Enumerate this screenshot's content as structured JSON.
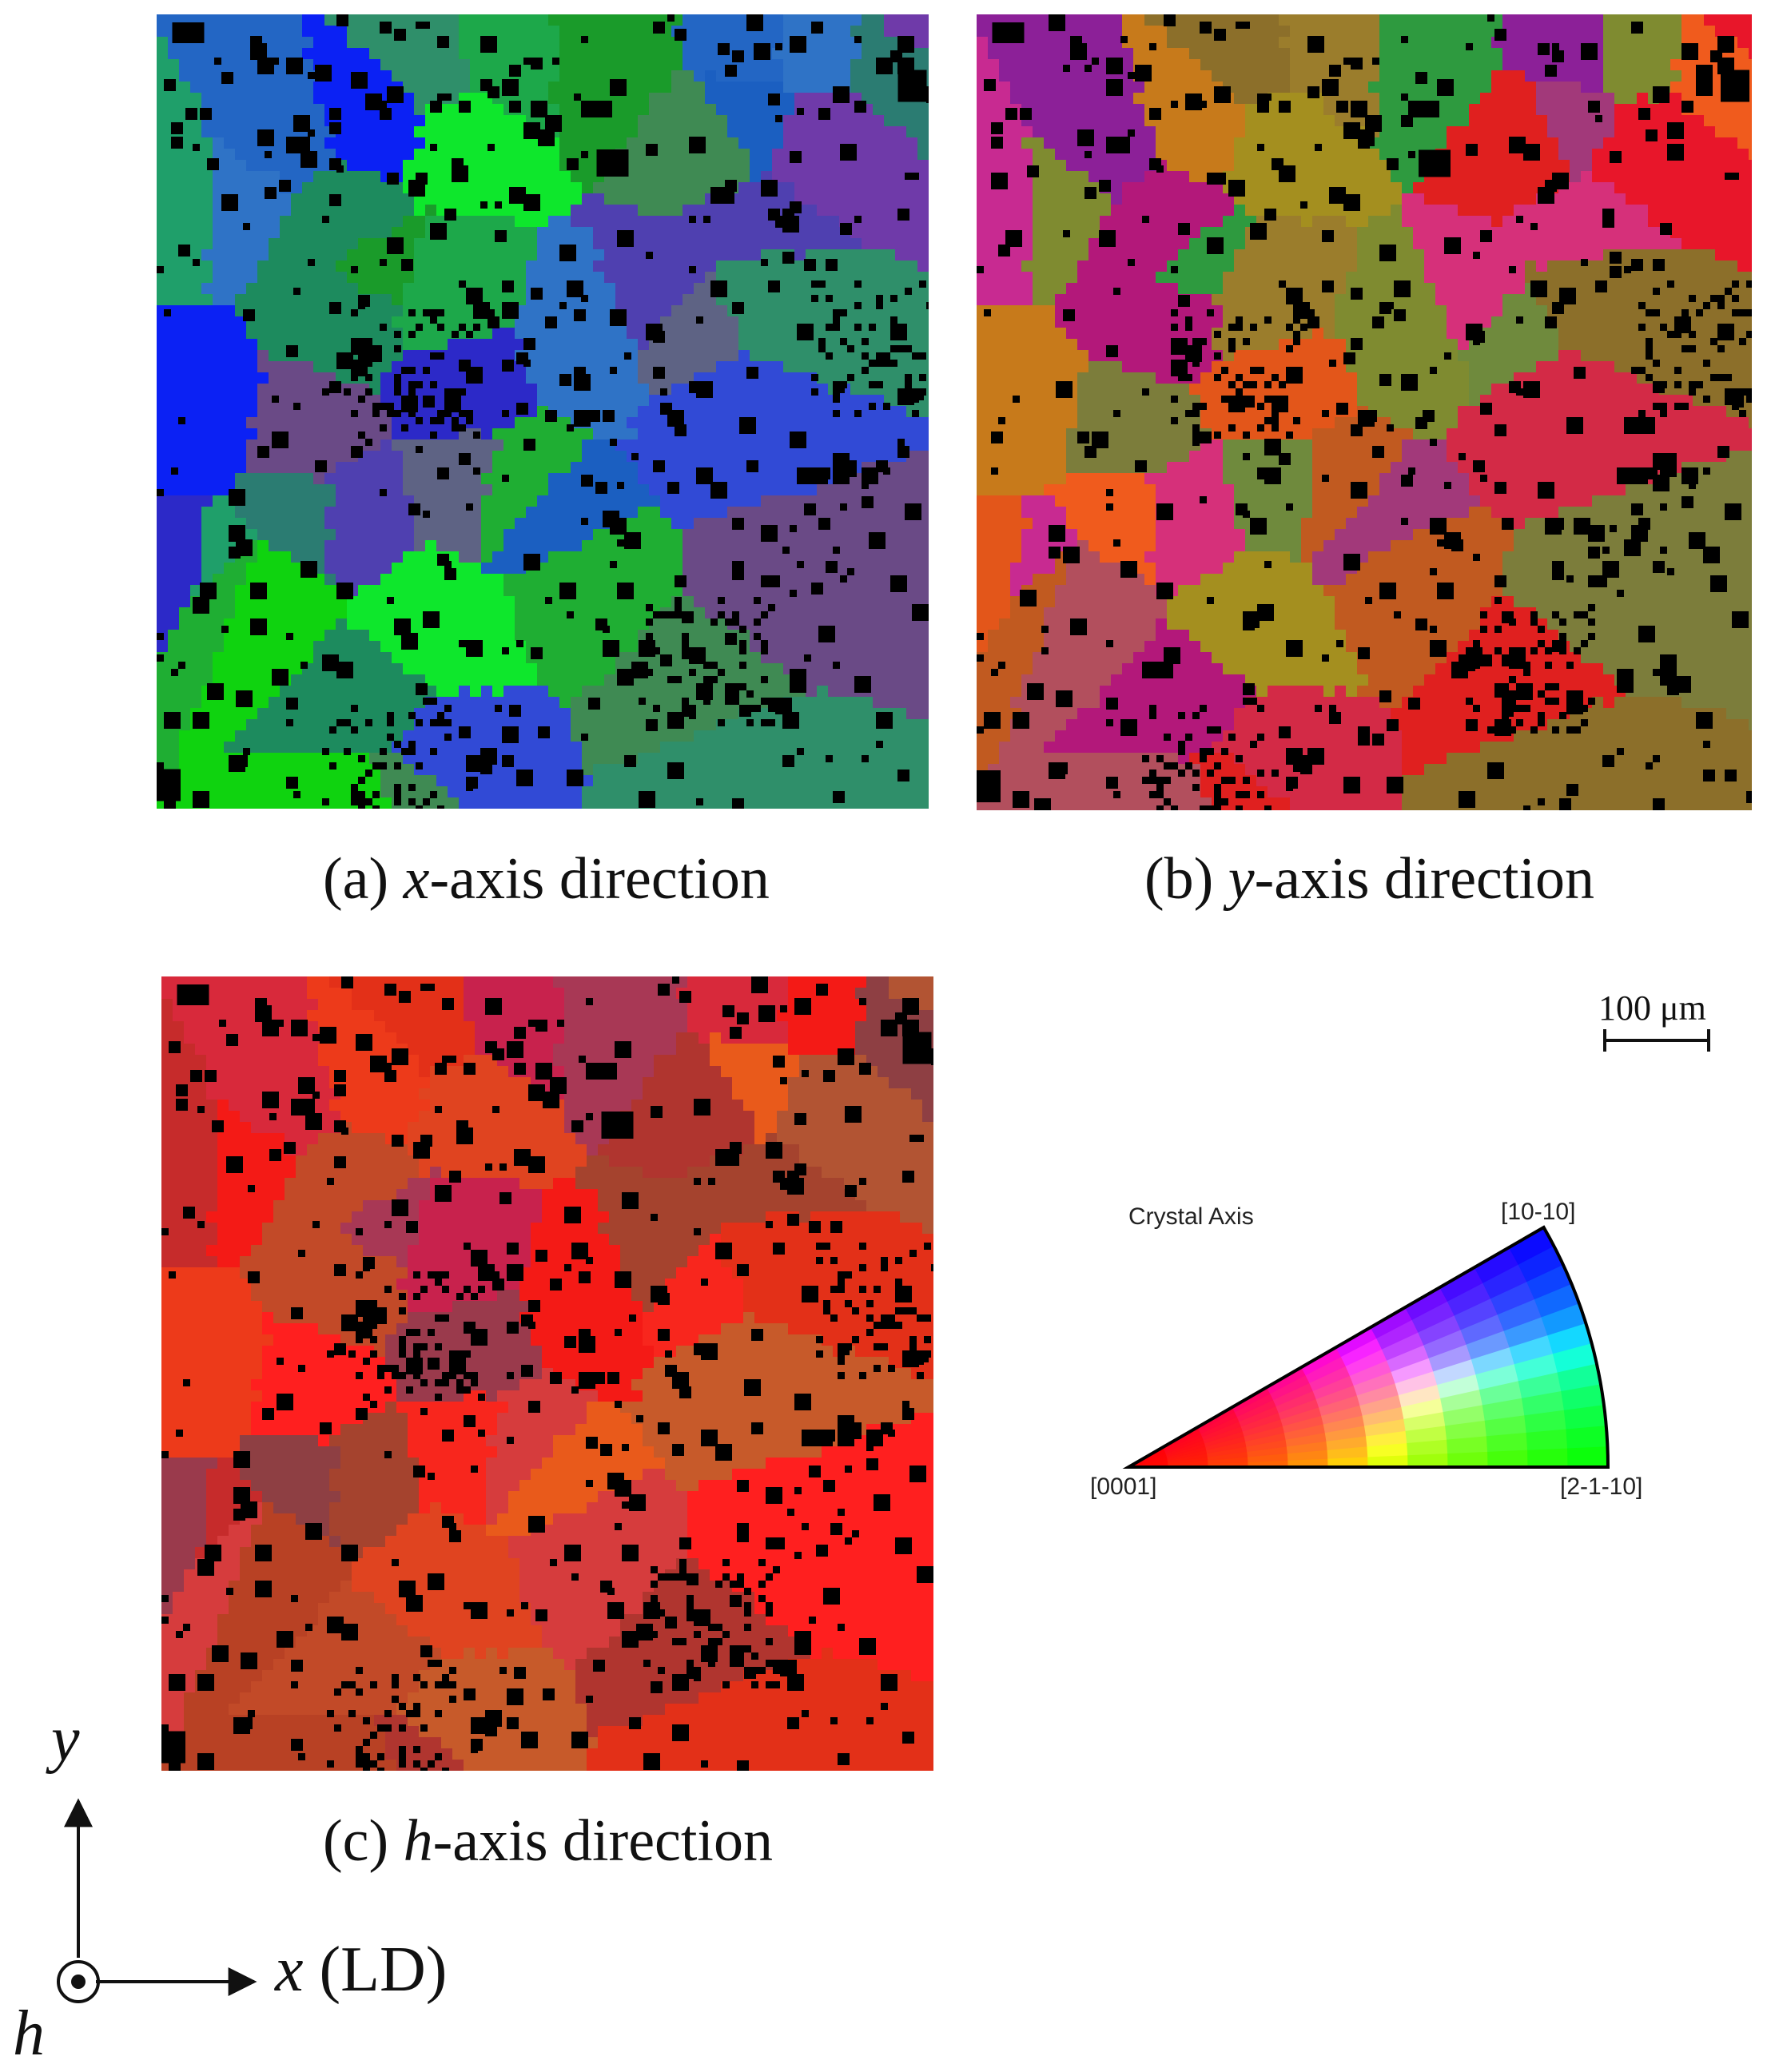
{
  "panels": [
    {
      "id": "a",
      "caption_prefix": "(a) ",
      "caption_axis": "x",
      "caption_suffix": "-axis direction",
      "base_color": "#1f5fa8",
      "grains": [
        {
          "c": "#1d8b5e"
        },
        {
          "c": "#2f8f6a"
        },
        {
          "c": "#3f8a53"
        },
        {
          "c": "#1fae33"
        },
        {
          "c": "#2f73c6"
        },
        {
          "c": "#4f40b0"
        },
        {
          "c": "#1da84a"
        },
        {
          "c": "#1b5fc1"
        },
        {
          "c": "#2c29c8"
        },
        {
          "c": "#5e6384"
        },
        {
          "c": "#0fd30f"
        },
        {
          "c": "#2366c4"
        },
        {
          "c": "#0b21f4"
        },
        {
          "c": "#1a9b2a"
        },
        {
          "c": "#314ad6"
        },
        {
          "c": "#6a4a86"
        },
        {
          "c": "#2b7c72"
        },
        {
          "c": "#0ee72c"
        },
        {
          "c": "#1f9f6a"
        },
        {
          "c": "#6f3aa9"
        }
      ]
    },
    {
      "id": "b",
      "caption_prefix": "(b) ",
      "caption_axis": "y",
      "caption_suffix": "-axis direction",
      "base_color": "#c2365f",
      "grains": [
        {
          "c": "#b3187a"
        },
        {
          "c": "#8c6f2a"
        },
        {
          "c": "#e0201f"
        },
        {
          "c": "#c15a20"
        },
        {
          "c": "#7f8b30"
        },
        {
          "c": "#d6307a"
        },
        {
          "c": "#9b7d2c"
        },
        {
          "c": "#a2397a"
        },
        {
          "c": "#e3561a"
        },
        {
          "c": "#6f8a3d"
        },
        {
          "c": "#b24f5d"
        },
        {
          "c": "#8c2098"
        },
        {
          "c": "#c77a1b"
        },
        {
          "c": "#2e9a3f"
        },
        {
          "c": "#d32a46"
        },
        {
          "c": "#7c7d3b"
        },
        {
          "c": "#f05b1d"
        },
        {
          "c": "#a48f1f"
        },
        {
          "c": "#c82a91"
        },
        {
          "c": "#e8162a"
        }
      ]
    },
    {
      "id": "c",
      "caption_prefix": "(c) ",
      "caption_axis": "h",
      "caption_suffix": "-axis direction",
      "base_color": "#e8261f",
      "grains": [
        {
          "c": "#c24a28"
        },
        {
          "c": "#e33018"
        },
        {
          "c": "#b0352f"
        },
        {
          "c": "#d63c3d"
        },
        {
          "c": "#f41a16"
        },
        {
          "c": "#a5432e"
        },
        {
          "c": "#c8224d"
        },
        {
          "c": "#e95a1b"
        },
        {
          "c": "#9a3a4c"
        },
        {
          "c": "#f8261d"
        },
        {
          "c": "#b84124"
        },
        {
          "c": "#d8293b"
        },
        {
          "c": "#ed3a1a"
        },
        {
          "c": "#a83855"
        },
        {
          "c": "#c75a2a"
        },
        {
          "c": "#ff1f1f"
        },
        {
          "c": "#8e3f43"
        },
        {
          "c": "#e04420"
        },
        {
          "c": "#c62b2b"
        },
        {
          "c": "#b25433"
        }
      ]
    }
  ],
  "scale_bar": {
    "label": "100 μm"
  },
  "legend": {
    "title": "Crystal Axis",
    "corners": {
      "top": "[10-10]",
      "left": "[0001]",
      "right": "[2-1-10]"
    },
    "colors": {
      "left": "#ff0000",
      "top": "#0000ff",
      "right": "#00ff00"
    }
  },
  "axes": {
    "y_label": "y",
    "x_label": "x",
    "x_suffix": " (LD)",
    "h_label": "h"
  }
}
